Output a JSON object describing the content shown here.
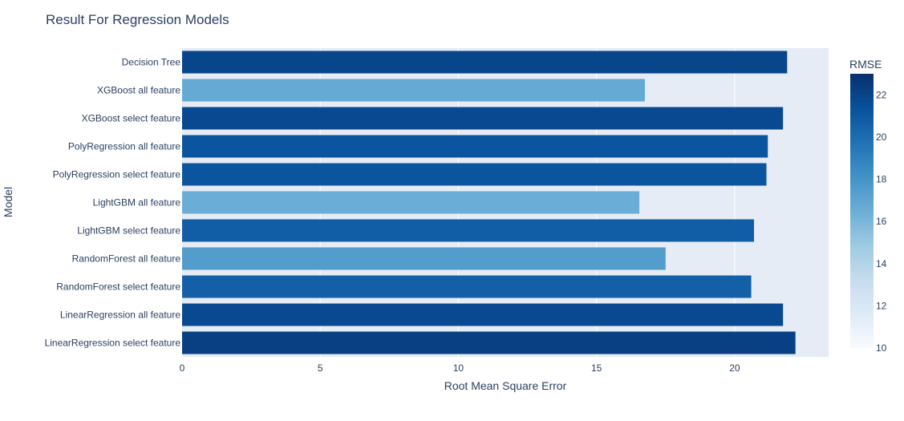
{
  "chart_data": {
    "type": "bar",
    "orientation": "horizontal",
    "title": "Result For Regression Models",
    "xlabel": "Root Mean Square Error",
    "ylabel": "Model",
    "xlim": [
      0,
      23.4
    ],
    "x_ticks": [
      0,
      5,
      10,
      15,
      20
    ],
    "categories": [
      "Decision Tree",
      "XGBoost all feature",
      "XGBoost select feature",
      "PolyRegression all feature",
      "PolyRegression select feature",
      "LightGBM all feature",
      "LightGBM select feature",
      "RandomForest all feature",
      "RandomForest select feature",
      "LinearRegression all feature",
      "LinearRegression select feature"
    ],
    "values": [
      21.9,
      16.75,
      21.75,
      21.2,
      21.15,
      16.55,
      20.7,
      17.5,
      20.6,
      21.75,
      22.2
    ],
    "colorbar": {
      "title": "RMSE",
      "range": [
        10,
        23
      ],
      "ticks": [
        10,
        12,
        14,
        16,
        18,
        20,
        22
      ],
      "colorscale": [
        "#f7fbff",
        "#deebf7",
        "#c6dbef",
        "#9ecae1",
        "#6baed6",
        "#4292c6",
        "#2171b5",
        "#08519c",
        "#08306b"
      ]
    },
    "grid": true,
    "plot_bgcolor": "#e5ecf6"
  }
}
